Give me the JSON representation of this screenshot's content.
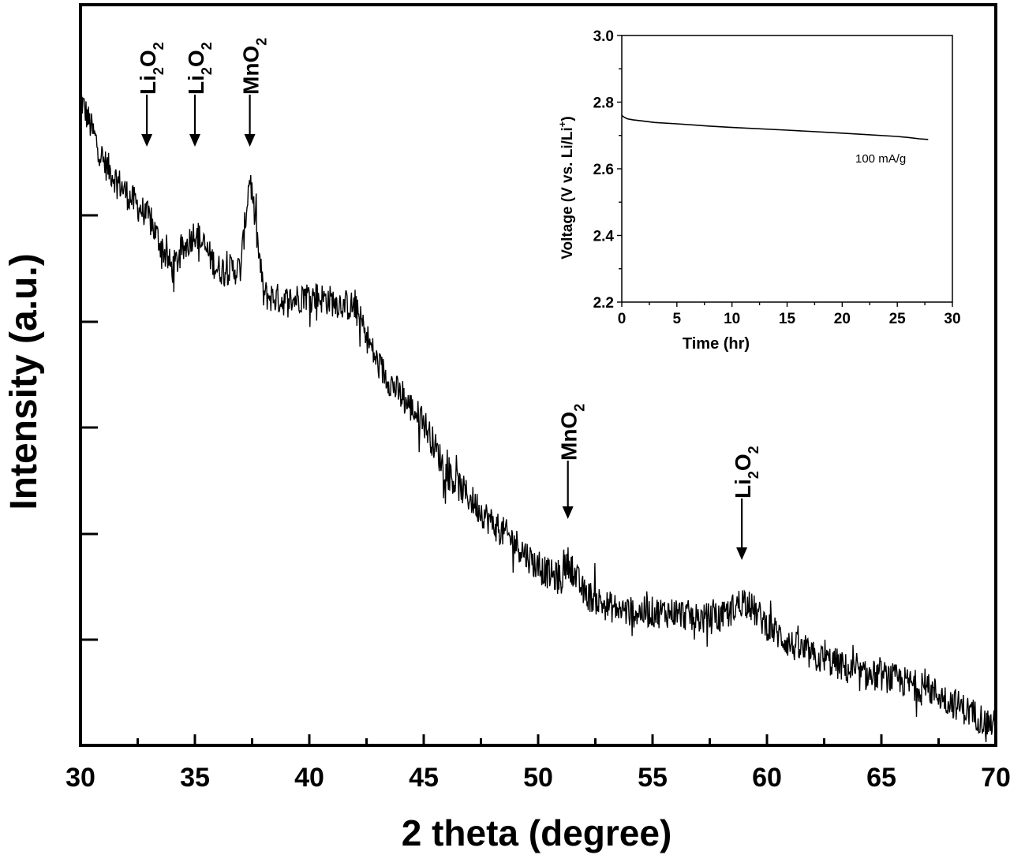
{
  "chart_data": [
    {
      "type": "line",
      "xlabel": "2 theta (degree)",
      "ylabel": "Intensity (a.u.)",
      "xlim": [
        30,
        70
      ],
      "xticks": [
        30,
        35,
        40,
        45,
        50,
        55,
        60,
        65,
        70
      ],
      "y_tick_labels_shown": false,
      "grid": false,
      "series": [
        {
          "values_trend": {
            "x": [
              30,
              31,
              32,
              33,
              34,
              35,
              36,
              37,
              37.4,
              38,
              39,
              40,
              41,
              42,
              43,
              44,
              45,
              46,
              47,
              48,
              49,
              50,
              51,
              51.3,
              52,
              53,
              54,
              55,
              56,
              57,
              58,
              59,
              60,
              61,
              62,
              63,
              64,
              65,
              66,
              67,
              68,
              69,
              70
            ],
            "y": [
              0.97,
              0.87,
              0.82,
              0.78,
              0.7,
              0.76,
              0.7,
              0.7,
              0.85,
              0.66,
              0.65,
              0.66,
              0.65,
              0.64,
              0.55,
              0.5,
              0.46,
              0.38,
              0.34,
              0.3,
              0.27,
              0.23,
              0.21,
              0.24,
              0.19,
              0.17,
              0.16,
              0.16,
              0.16,
              0.15,
              0.15,
              0.18,
              0.14,
              0.11,
              0.09,
              0.08,
              0.06,
              0.06,
              0.05,
              0.04,
              0.02,
              0.0,
              -0.02
            ]
          }
        }
      ],
      "annotations": [
        {
          "formula": "Li",
          "sub1": "2",
          "mid": "O",
          "sub2": "2",
          "x": 32.9
        },
        {
          "formula": "Li",
          "sub1": "2",
          "mid": "O",
          "sub2": "2",
          "x": 35.0
        },
        {
          "formula": "Mn",
          "sub1": "",
          "mid": "O",
          "sub2": "2",
          "x": 37.4
        },
        {
          "formula": "Mn",
          "sub1": "",
          "mid": "O",
          "sub2": "2",
          "x": 51.3
        },
        {
          "formula": "Li",
          "sub1": "2",
          "mid": "O",
          "sub2": "2",
          "x": 58.9
        }
      ]
    },
    {
      "type": "line",
      "xlabel": "Time (hr)",
      "ylabel_main": "Voltage (V vs. Li/Li",
      "ylabel_sup": "+",
      "ylabel_end": ")",
      "xlim": [
        0,
        30
      ],
      "ylim": [
        2.2,
        3.0
      ],
      "xticks": [
        0,
        5,
        10,
        15,
        20,
        25,
        30
      ],
      "yticks": [
        2.2,
        2.4,
        2.6,
        2.8,
        3.0
      ],
      "ytick_labels": [
        "2.2",
        "2.4",
        "2.6",
        "2.8",
        "3.0"
      ],
      "grid": false,
      "series": [
        {
          "x": [
            0,
            0.2,
            0.5,
            1,
            2,
            3,
            5,
            8,
            10,
            15,
            20,
            25,
            26,
            27,
            27.8
          ],
          "y": [
            2.76,
            2.755,
            2.75,
            2.747,
            2.743,
            2.739,
            2.735,
            2.728,
            2.724,
            2.716,
            2.707,
            2.697,
            2.694,
            2.69,
            2.688
          ]
        }
      ],
      "annotation": "100 mA/g"
    }
  ]
}
